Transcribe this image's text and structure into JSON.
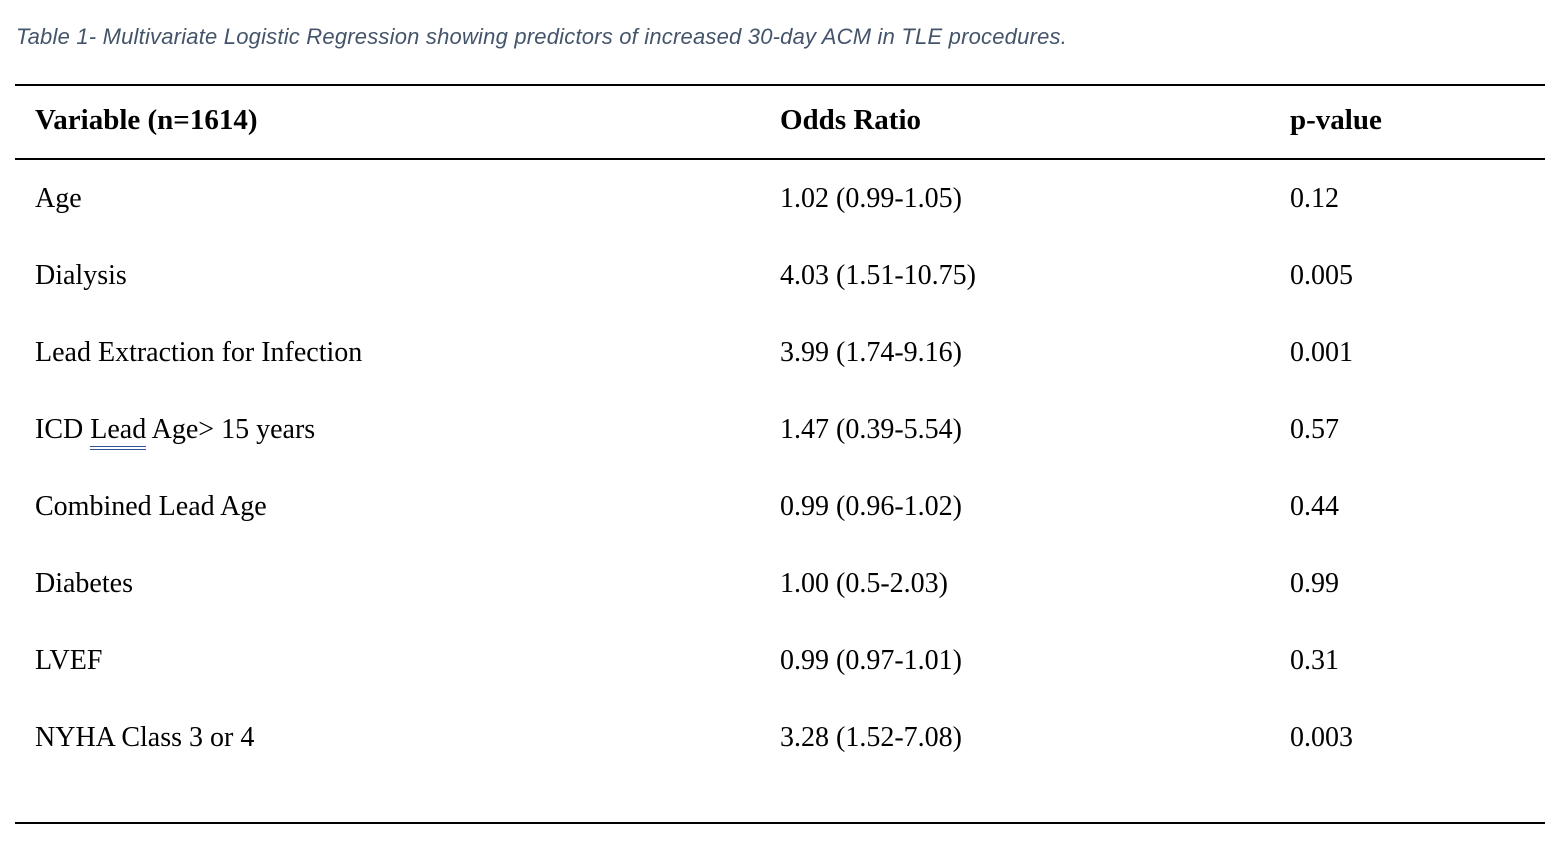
{
  "caption": "Table 1- Multivariate Logistic Regression showing predictors of increased 30-day ACM in TLE procedures.",
  "colors": {
    "caption_color": "#44546A",
    "rule_color": "#000000",
    "text_color": "#000000",
    "page_bg": "#FFFFFF"
  },
  "table": {
    "headers": {
      "variable": "Variable (n=1614)",
      "odds_ratio": "Odds Ratio",
      "p_value": "p-value"
    },
    "rows": [
      {
        "variable": "Age",
        "odds_ratio": "1.02 (0.99-1.05)",
        "p_value": "0.12"
      },
      {
        "variable": "Dialysis",
        "odds_ratio": "4.03 (1.51-10.75)",
        "p_value": "0.005"
      },
      {
        "variable": "Lead Extraction for Infection",
        "odds_ratio": "3.99 (1.74-9.16)",
        "p_value": "0.001"
      },
      {
        "variable_prefix": "ICD ",
        "variable_underlined": "Lead",
        "variable_suffix": " Age> 15 years",
        "odds_ratio": "1.47 (0.39-5.54)",
        "p_value": "0.57"
      },
      {
        "variable": "Combined Lead Age",
        "odds_ratio": "0.99 (0.96-1.02)",
        "p_value": "0.44"
      },
      {
        "variable": "Diabetes",
        "odds_ratio": "1.00 (0.5-2.03)",
        "p_value": "0.99"
      },
      {
        "variable": "LVEF",
        "odds_ratio": "0.99 (0.97-1.01)",
        "p_value": "0.31"
      },
      {
        "variable": "NYHA Class 3 or 4",
        "odds_ratio": "3.28 (1.52-7.08)",
        "p_value": "0.003"
      }
    ]
  }
}
